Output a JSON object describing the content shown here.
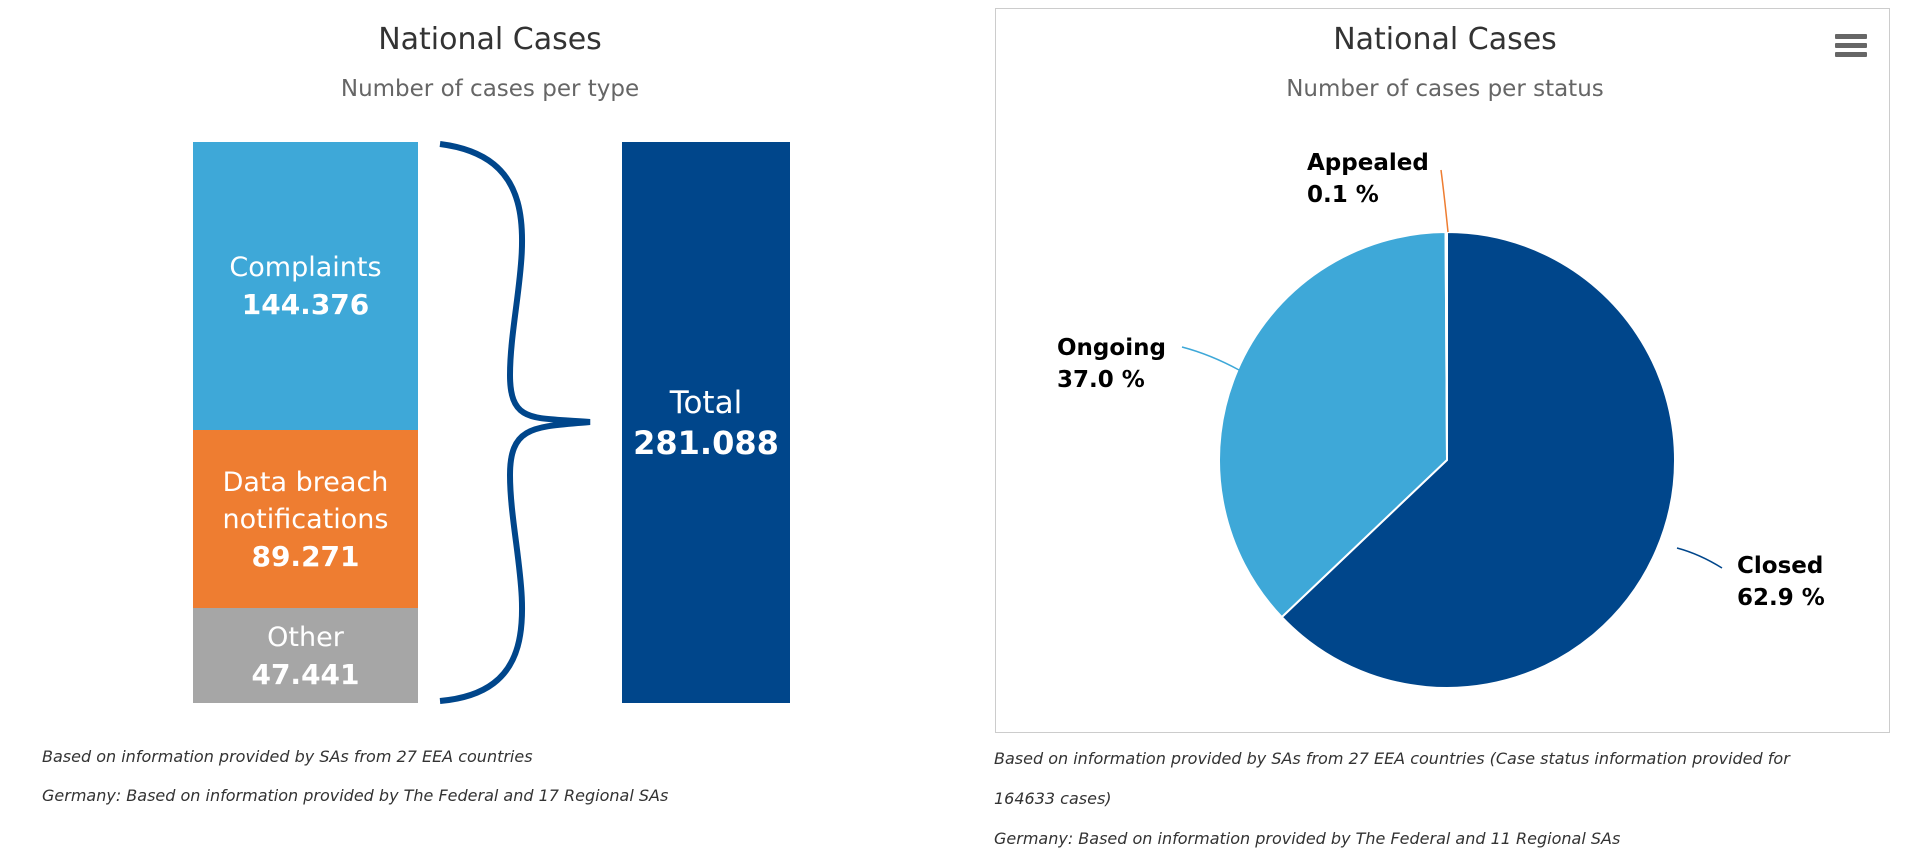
{
  "left_chart": {
    "title": "National Cases",
    "subtitle": "Number of cases per type",
    "blocks": [
      {
        "label": "Complaints",
        "value": "144.376",
        "color": "#3ea8d8"
      },
      {
        "label": "Data breach\nnotifications",
        "value": "89.271",
        "color": "#ee7d31"
      },
      {
        "label": "Other",
        "value": "47.441",
        "color": "#a6a6a6"
      }
    ],
    "total": {
      "label": "Total",
      "value": "281.088",
      "color": "#00468b"
    },
    "brace_color": "#00468b",
    "notes": [
      "Based on information provided by SAs from 27 EEA countries",
      "Germany: Based on information provided by The Federal and 17 Regional SAs"
    ]
  },
  "right_chart": {
    "title": "National Cases",
    "subtitle": "Number of cases per status",
    "menu_icon": "hamburger-menu-icon",
    "notes": [
      "Based on information provided by SAs from 27 EEA countries (Case status information provided for",
      "164633 cases)",
      "Germany: Based on information provided by The Federal and 11 Regional SAs"
    ]
  },
  "chart_data": [
    {
      "type": "bar",
      "title": "National Cases",
      "subtitle": "Number of cases per type",
      "categories": [
        "Complaints",
        "Data breach notifications",
        "Other"
      ],
      "values": [
        144376,
        89271,
        47441
      ],
      "total": 281088
    },
    {
      "type": "pie",
      "title": "National Cases",
      "subtitle": "Number of cases per status",
      "slices": [
        {
          "name": "Closed",
          "value": 62.9,
          "label": "62.9 %",
          "color": "#00468b"
        },
        {
          "name": "Ongoing",
          "value": 37.0,
          "label": "37.0 %",
          "color": "#3ea8d8"
        },
        {
          "name": "Appealed",
          "value": 0.1,
          "label": "0.1 %",
          "color": "#ee7d31"
        }
      ]
    }
  ]
}
